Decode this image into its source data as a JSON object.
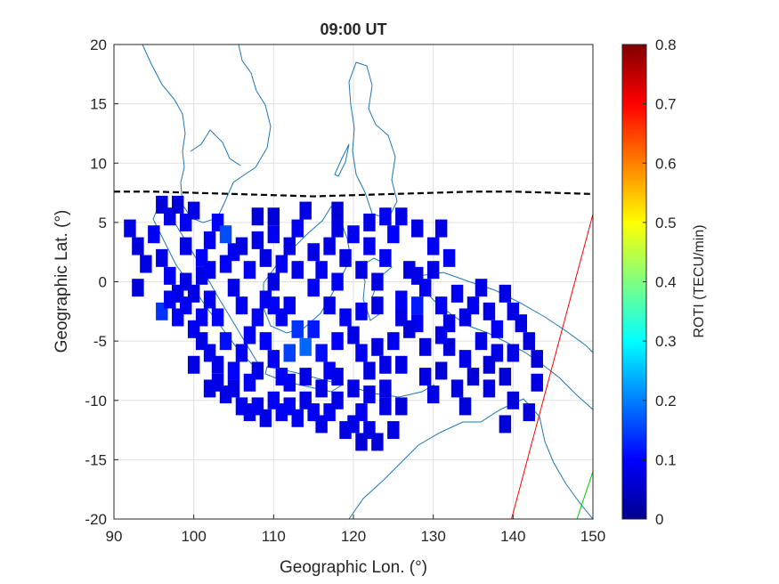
{
  "chart_data": {
    "type": "heatmap",
    "title": "09:00 UT",
    "xlabel": "Geographic Lon. (°)",
    "ylabel": "Geographic Lat. (°)",
    "xlim": [
      90,
      150
    ],
    "ylim": [
      -20,
      20
    ],
    "xticks": [
      "90",
      "100",
      "110",
      "120",
      "130",
      "140",
      "150"
    ],
    "yticks": [
      "20",
      "15",
      "10",
      "5",
      "0",
      "-5",
      "-10",
      "-15",
      "-20"
    ],
    "grid": true,
    "colorbar": {
      "label": "ROTI (TECU/min)",
      "range": [
        0,
        0.8
      ],
      "ticks": [
        "0.8",
        "0.7",
        "0.6",
        "0.5",
        "0.4",
        "0.3",
        "0.2",
        "0.1",
        "0"
      ],
      "colormap": "jet"
    },
    "cell_size_deg": 1.5,
    "cells": [
      [
        92,
        4.5,
        0.08
      ],
      [
        93,
        3,
        0.07
      ],
      [
        94,
        1.5,
        0.08
      ],
      [
        93,
        -0.5,
        0.07
      ],
      [
        95,
        4,
        0.09
      ],
      [
        96,
        6.5,
        0.07
      ],
      [
        97,
        5.5,
        0.08
      ],
      [
        98,
        6.5,
        0.07
      ],
      [
        99,
        5,
        0.09
      ],
      [
        100,
        6,
        0.08
      ],
      [
        96,
        2,
        0.08
      ],
      [
        97,
        0.5,
        0.09
      ],
      [
        98,
        -1,
        0.08
      ],
      [
        96,
        -2.5,
        0.14
      ],
      [
        98,
        -3,
        0.1
      ],
      [
        99,
        -2,
        0.09
      ],
      [
        100,
        -1,
        0.08
      ],
      [
        101,
        2,
        0.1
      ],
      [
        102,
        3.5,
        0.09
      ],
      [
        103,
        5,
        0.1
      ],
      [
        104,
        4,
        0.16
      ],
      [
        105,
        2.5,
        0.09
      ],
      [
        100,
        -4,
        0.09
      ],
      [
        101,
        -5,
        0.08
      ],
      [
        102,
        -6,
        0.09
      ],
      [
        103,
        -7,
        0.08
      ],
      [
        104,
        -5,
        0.11
      ],
      [
        103,
        -3,
        0.1
      ],
      [
        102,
        -1.5,
        0.09
      ],
      [
        101,
        0.5,
        0.08
      ],
      [
        103,
        -8.5,
        0.08
      ],
      [
        104,
        -9.5,
        0.08
      ],
      [
        105,
        -9,
        0.08
      ],
      [
        106,
        -10.5,
        0.09
      ],
      [
        107,
        -11,
        0.08
      ],
      [
        108,
        -10.5,
        0.09
      ],
      [
        109,
        -11.5,
        0.08
      ],
      [
        110,
        -10,
        0.1
      ],
      [
        111,
        -11,
        0.09
      ],
      [
        112,
        -10.5,
        0.1
      ],
      [
        113,
        -11.5,
        0.09
      ],
      [
        114,
        -10,
        0.08
      ],
      [
        115,
        -11,
        0.09
      ],
      [
        116,
        -12,
        0.08
      ],
      [
        117,
        -11,
        0.09
      ],
      [
        118,
        -10,
        0.08
      ],
      [
        119,
        -12.5,
        0.08
      ],
      [
        120,
        -12,
        0.08
      ],
      [
        121,
        -11,
        0.09
      ],
      [
        122,
        -12.5,
        0.08
      ],
      [
        123,
        -13.5,
        0.07
      ],
      [
        121,
        -13.5,
        0.07
      ],
      [
        125,
        -12.5,
        0.08
      ],
      [
        126,
        -10.5,
        0.07
      ],
      [
        124,
        -10.5,
        0.08
      ],
      [
        105,
        -7.5,
        0.1
      ],
      [
        106,
        -6,
        0.09
      ],
      [
        107,
        -4.5,
        0.09
      ],
      [
        108,
        -3,
        0.1
      ],
      [
        109,
        -1.5,
        0.09
      ],
      [
        110,
        0,
        0.08
      ],
      [
        111,
        1.5,
        0.09
      ],
      [
        112,
        3,
        0.08
      ],
      [
        113,
        4.5,
        0.09
      ],
      [
        114,
        6,
        0.08
      ],
      [
        112,
        -2,
        0.09
      ],
      [
        113,
        -4,
        0.14
      ],
      [
        114,
        -5.5,
        0.18
      ],
      [
        112,
        -6,
        0.15
      ],
      [
        115,
        -4,
        0.12
      ],
      [
        116,
        -6,
        0.11
      ],
      [
        117,
        -7.5,
        0.09
      ],
      [
        118,
        -5,
        0.1
      ],
      [
        119,
        -3,
        0.09
      ],
      [
        120,
        -4.5,
        0.08
      ],
      [
        121,
        -6,
        0.09
      ],
      [
        122,
        -7.5,
        0.08
      ],
      [
        123,
        -5.5,
        0.08
      ],
      [
        124,
        -7,
        0.08
      ],
      [
        125,
        -5,
        0.09
      ],
      [
        126,
        -7,
        0.08
      ],
      [
        110,
        -6.5,
        0.09
      ],
      [
        108,
        -7.5,
        0.08
      ],
      [
        111,
        -8,
        0.09
      ],
      [
        109,
        -5,
        0.1
      ],
      [
        107,
        -8.5,
        0.09
      ],
      [
        106,
        -2,
        0.09
      ],
      [
        105,
        -0.5,
        0.08
      ],
      [
        107,
        1,
        0.09
      ],
      [
        108,
        3.5,
        0.08
      ],
      [
        116,
        1,
        0.09
      ],
      [
        117,
        3,
        0.08
      ],
      [
        118,
        0,
        0.09
      ],
      [
        119,
        2,
        0.08
      ],
      [
        120,
        4,
        0.09
      ],
      [
        121,
        1,
        0.08
      ],
      [
        122,
        3,
        0.09
      ],
      [
        123,
        0,
        0.08
      ],
      [
        124,
        2,
        0.09
      ],
      [
        125,
        4,
        0.1
      ],
      [
        126,
        -1.5,
        0.09
      ],
      [
        127,
        1,
        0.08
      ],
      [
        128,
        -2,
        0.12
      ],
      [
        129,
        -0.5,
        0.09
      ],
      [
        130,
        1,
        0.08
      ],
      [
        131,
        -2,
        0.09
      ],
      [
        132,
        -3.5,
        0.08
      ],
      [
        133,
        -1,
        0.09
      ],
      [
        134,
        -3,
        0.08
      ],
      [
        135,
        -2,
        0.09
      ],
      [
        136,
        -0.5,
        0.08
      ],
      [
        137,
        -2.5,
        0.08
      ],
      [
        138,
        -4,
        0.09
      ],
      [
        139,
        -1,
        0.08
      ],
      [
        140,
        -2.5,
        0.08
      ],
      [
        141,
        -3.5,
        0.08
      ],
      [
        142,
        -5,
        0.07
      ],
      [
        143,
        -6.5,
        0.07
      ],
      [
        140,
        -6,
        0.08
      ],
      [
        138,
        -6,
        0.08
      ],
      [
        136,
        -5,
        0.08
      ],
      [
        134,
        -6.5,
        0.08
      ],
      [
        129,
        -8,
        0.08
      ],
      [
        131,
        -7.5,
        0.07
      ],
      [
        130,
        -9.5,
        0.08
      ],
      [
        133,
        -9,
        0.08
      ],
      [
        134,
        -10.5,
        0.07
      ],
      [
        137,
        -9,
        0.08
      ],
      [
        139,
        -8,
        0.07
      ],
      [
        140,
        -10,
        0.07
      ],
      [
        142,
        -11,
        0.07
      ],
      [
        143,
        -8.5,
        0.08
      ],
      [
        139,
        -12,
        0.07
      ],
      [
        126,
        5.5,
        0.08
      ],
      [
        128,
        4.5,
        0.08
      ],
      [
        130,
        3,
        0.09
      ],
      [
        131,
        4.5,
        0.08
      ],
      [
        132,
        2,
        0.09
      ],
      [
        128,
        -3.5,
        0.09
      ],
      [
        126,
        -3,
        0.08
      ],
      [
        123,
        -2,
        0.08
      ],
      [
        121,
        -2.5,
        0.09
      ],
      [
        117,
        -2,
        0.08
      ],
      [
        115,
        -0.5,
        0.09
      ],
      [
        113,
        1,
        0.08
      ],
      [
        111,
        -3,
        0.09
      ],
      [
        110,
        -2,
        0.1
      ],
      [
        112,
        -8.5,
        0.09
      ],
      [
        114,
        -8,
        0.08
      ],
      [
        116,
        -9,
        0.08
      ],
      [
        118,
        -8,
        0.08
      ],
      [
        120,
        -9,
        0.08
      ],
      [
        122,
        -9.5,
        0.08
      ],
      [
        124,
        -9,
        0.08
      ],
      [
        101,
        -3,
        0.09
      ],
      [
        99,
        0,
        0.08
      ],
      [
        97,
        -1.5,
        0.09
      ],
      [
        99,
        3,
        0.08
      ],
      [
        102,
        1,
        0.09
      ],
      [
        104,
        1.5,
        0.1
      ],
      [
        106,
        3,
        0.08
      ],
      [
        109,
        2,
        0.08
      ],
      [
        110,
        4,
        0.09
      ],
      [
        115,
        2.5,
        0.08
      ],
      [
        118,
        4.5,
        0.08
      ],
      [
        122,
        5,
        0.08
      ],
      [
        124,
        5.5,
        0.09
      ],
      [
        128,
        0.5,
        0.08
      ],
      [
        127,
        -4,
        0.07
      ],
      [
        129,
        -5.5,
        0.08
      ],
      [
        132,
        -5.5,
        0.07
      ],
      [
        135,
        -8,
        0.07
      ],
      [
        137,
        -7,
        0.07
      ],
      [
        108,
        5.5,
        0.07
      ],
      [
        110,
        5.5,
        0.07
      ],
      [
        118,
        6,
        0.07
      ],
      [
        131,
        -4.5,
        0.08
      ],
      [
        100,
        -7,
        0.08
      ],
      [
        102,
        -9,
        0.08
      ]
    ],
    "coastline_color": "#1f77b4",
    "equator_line": {
      "style": "dashed",
      "color": "#000000",
      "points": [
        [
          90,
          7.6
        ],
        [
          95,
          7.6
        ],
        [
          100,
          7.5
        ],
        [
          105,
          7.4
        ],
        [
          110,
          7.3
        ],
        [
          115,
          7.2
        ],
        [
          120,
          7.3
        ],
        [
          125,
          7.4
        ],
        [
          130,
          7.5
        ],
        [
          135,
          7.6
        ],
        [
          140,
          7.6
        ],
        [
          145,
          7.5
        ],
        [
          150,
          7.4
        ]
      ]
    },
    "track_lines": [
      {
        "color": "#ff0000",
        "points": [
          [
            139.8,
            -20
          ],
          [
            150,
            5.7
          ]
        ]
      },
      {
        "color": "#00cc00",
        "points": [
          [
            148,
            -20
          ],
          [
            150,
            -16
          ]
        ]
      }
    ]
  }
}
